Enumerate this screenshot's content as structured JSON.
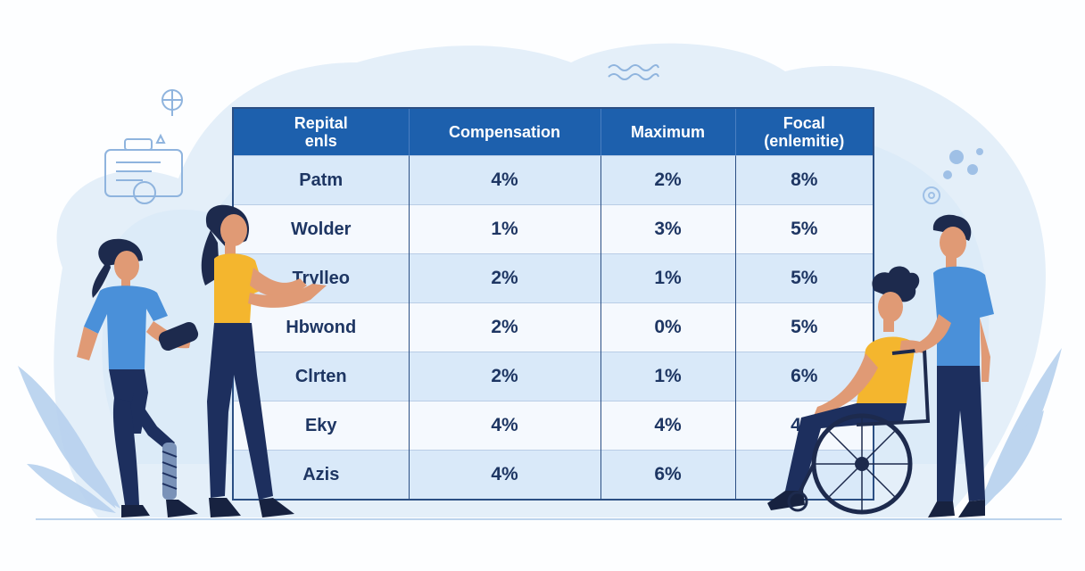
{
  "table": {
    "headers": [
      "Repital\nenls",
      "Compensation",
      "Maximum",
      "Focal\n(enlemitie)"
    ],
    "rows": [
      [
        "Patm",
        "4%",
        "2%",
        "8%"
      ],
      [
        "Wolder",
        "1%",
        "3%",
        "5%"
      ],
      [
        "Trylleo",
        "2%",
        "1%",
        "5%"
      ],
      [
        "Hbwond",
        "2%",
        "0%",
        "5%"
      ],
      [
        "Clrten",
        "2%",
        "1%",
        "6%"
      ],
      [
        "Eky",
        "4%",
        "4%",
        "4%"
      ],
      [
        "Azis",
        "4%",
        "6%",
        ""
      ]
    ]
  },
  "colors": {
    "header": "#1d60ad",
    "row_light": "#d9e9f9",
    "text": "#1e3663",
    "background_blob": "#e4eff9",
    "figure_shirt_blue": "#4a90d9",
    "figure_shirt_yellow": "#f4b62e",
    "figure_pants": "#1d2f5e"
  },
  "icons": [
    "document-card-icon",
    "globe-icon",
    "wave-icon",
    "molecule-icon",
    "leaf-icon",
    "wheelchair-icon"
  ]
}
